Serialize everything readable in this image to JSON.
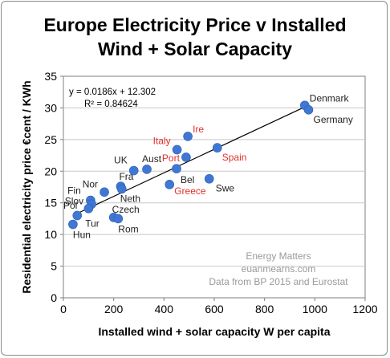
{
  "chart_data": {
    "type": "scatter",
    "title_line1": "Europe Electricity Price v Installed",
    "title_line2": "Wind + Solar Capacity",
    "xlabel": "Installed wind + solar capacity W per capita",
    "ylabel": "Residential electricity price €cent / KWh",
    "xlim": [
      0,
      1200
    ],
    "ylim": [
      0,
      35
    ],
    "xticks": [
      0,
      200,
      400,
      600,
      800,
      1000,
      1200
    ],
    "yticks": [
      0,
      5,
      10,
      15,
      20,
      25,
      30,
      35
    ],
    "grid": true,
    "marker_color": "#3f78d4",
    "trendline_color": "#000000",
    "label_color_default": "#222222",
    "label_color_highlight": "#e0312b",
    "equation": "y = 0.0186x + 12.302",
    "r_squared": "R² = 0.84624",
    "trendline": {
      "slope": 0.0186,
      "intercept": 12.302,
      "x_range": [
        40,
        975
      ]
    },
    "watermark": [
      "Energy Matters",
      "euanmearns.com",
      "Data from BP 2015 and Eurostat"
    ],
    "points": [
      {
        "label": "Denmark",
        "x": 960,
        "y": 30.4,
        "highlight": false
      },
      {
        "label": "Germany",
        "x": 975,
        "y": 29.7,
        "highlight": false
      },
      {
        "label": "Ire",
        "x": 495,
        "y": 25.5,
        "highlight": true
      },
      {
        "label": "Italy",
        "x": 452,
        "y": 23.4,
        "highlight": true
      },
      {
        "label": "Spain",
        "x": 612,
        "y": 23.7,
        "highlight": true
      },
      {
        "label": "Port",
        "x": 488,
        "y": 22.2,
        "highlight": true
      },
      {
        "label": "UK",
        "x": 280,
        "y": 20.1,
        "highlight": false
      },
      {
        "label": "Aust",
        "x": 332,
        "y": 20.3,
        "highlight": false
      },
      {
        "label": "Bel",
        "x": 450,
        "y": 20.4,
        "highlight": false
      },
      {
        "label": "Swe",
        "x": 580,
        "y": 18.8,
        "highlight": false
      },
      {
        "label": "Greece",
        "x": 422,
        "y": 17.9,
        "highlight": true
      },
      {
        "label": "Fra",
        "x": 228,
        "y": 17.6,
        "highlight": false
      },
      {
        "label": "Neth",
        "x": 232,
        "y": 17.2,
        "highlight": false
      },
      {
        "label": "Nor",
        "x": 163,
        "y": 16.7,
        "highlight": false
      },
      {
        "label": "Fin",
        "x": 108,
        "y": 15.4,
        "highlight": false
      },
      {
        "label": "Slov",
        "x": 112,
        "y": 14.8,
        "highlight": false
      },
      {
        "label": "Pol",
        "x": 100,
        "y": 14.1,
        "highlight": false
      },
      {
        "label": "Tur",
        "x": 55,
        "y": 13.0,
        "highlight": false
      },
      {
        "label": "Czech",
        "x": 200,
        "y": 12.7,
        "highlight": false
      },
      {
        "label": "Rom",
        "x": 218,
        "y": 12.5,
        "highlight": false
      },
      {
        "label": "Hun",
        "x": 38,
        "y": 11.6,
        "highlight": false
      }
    ]
  }
}
